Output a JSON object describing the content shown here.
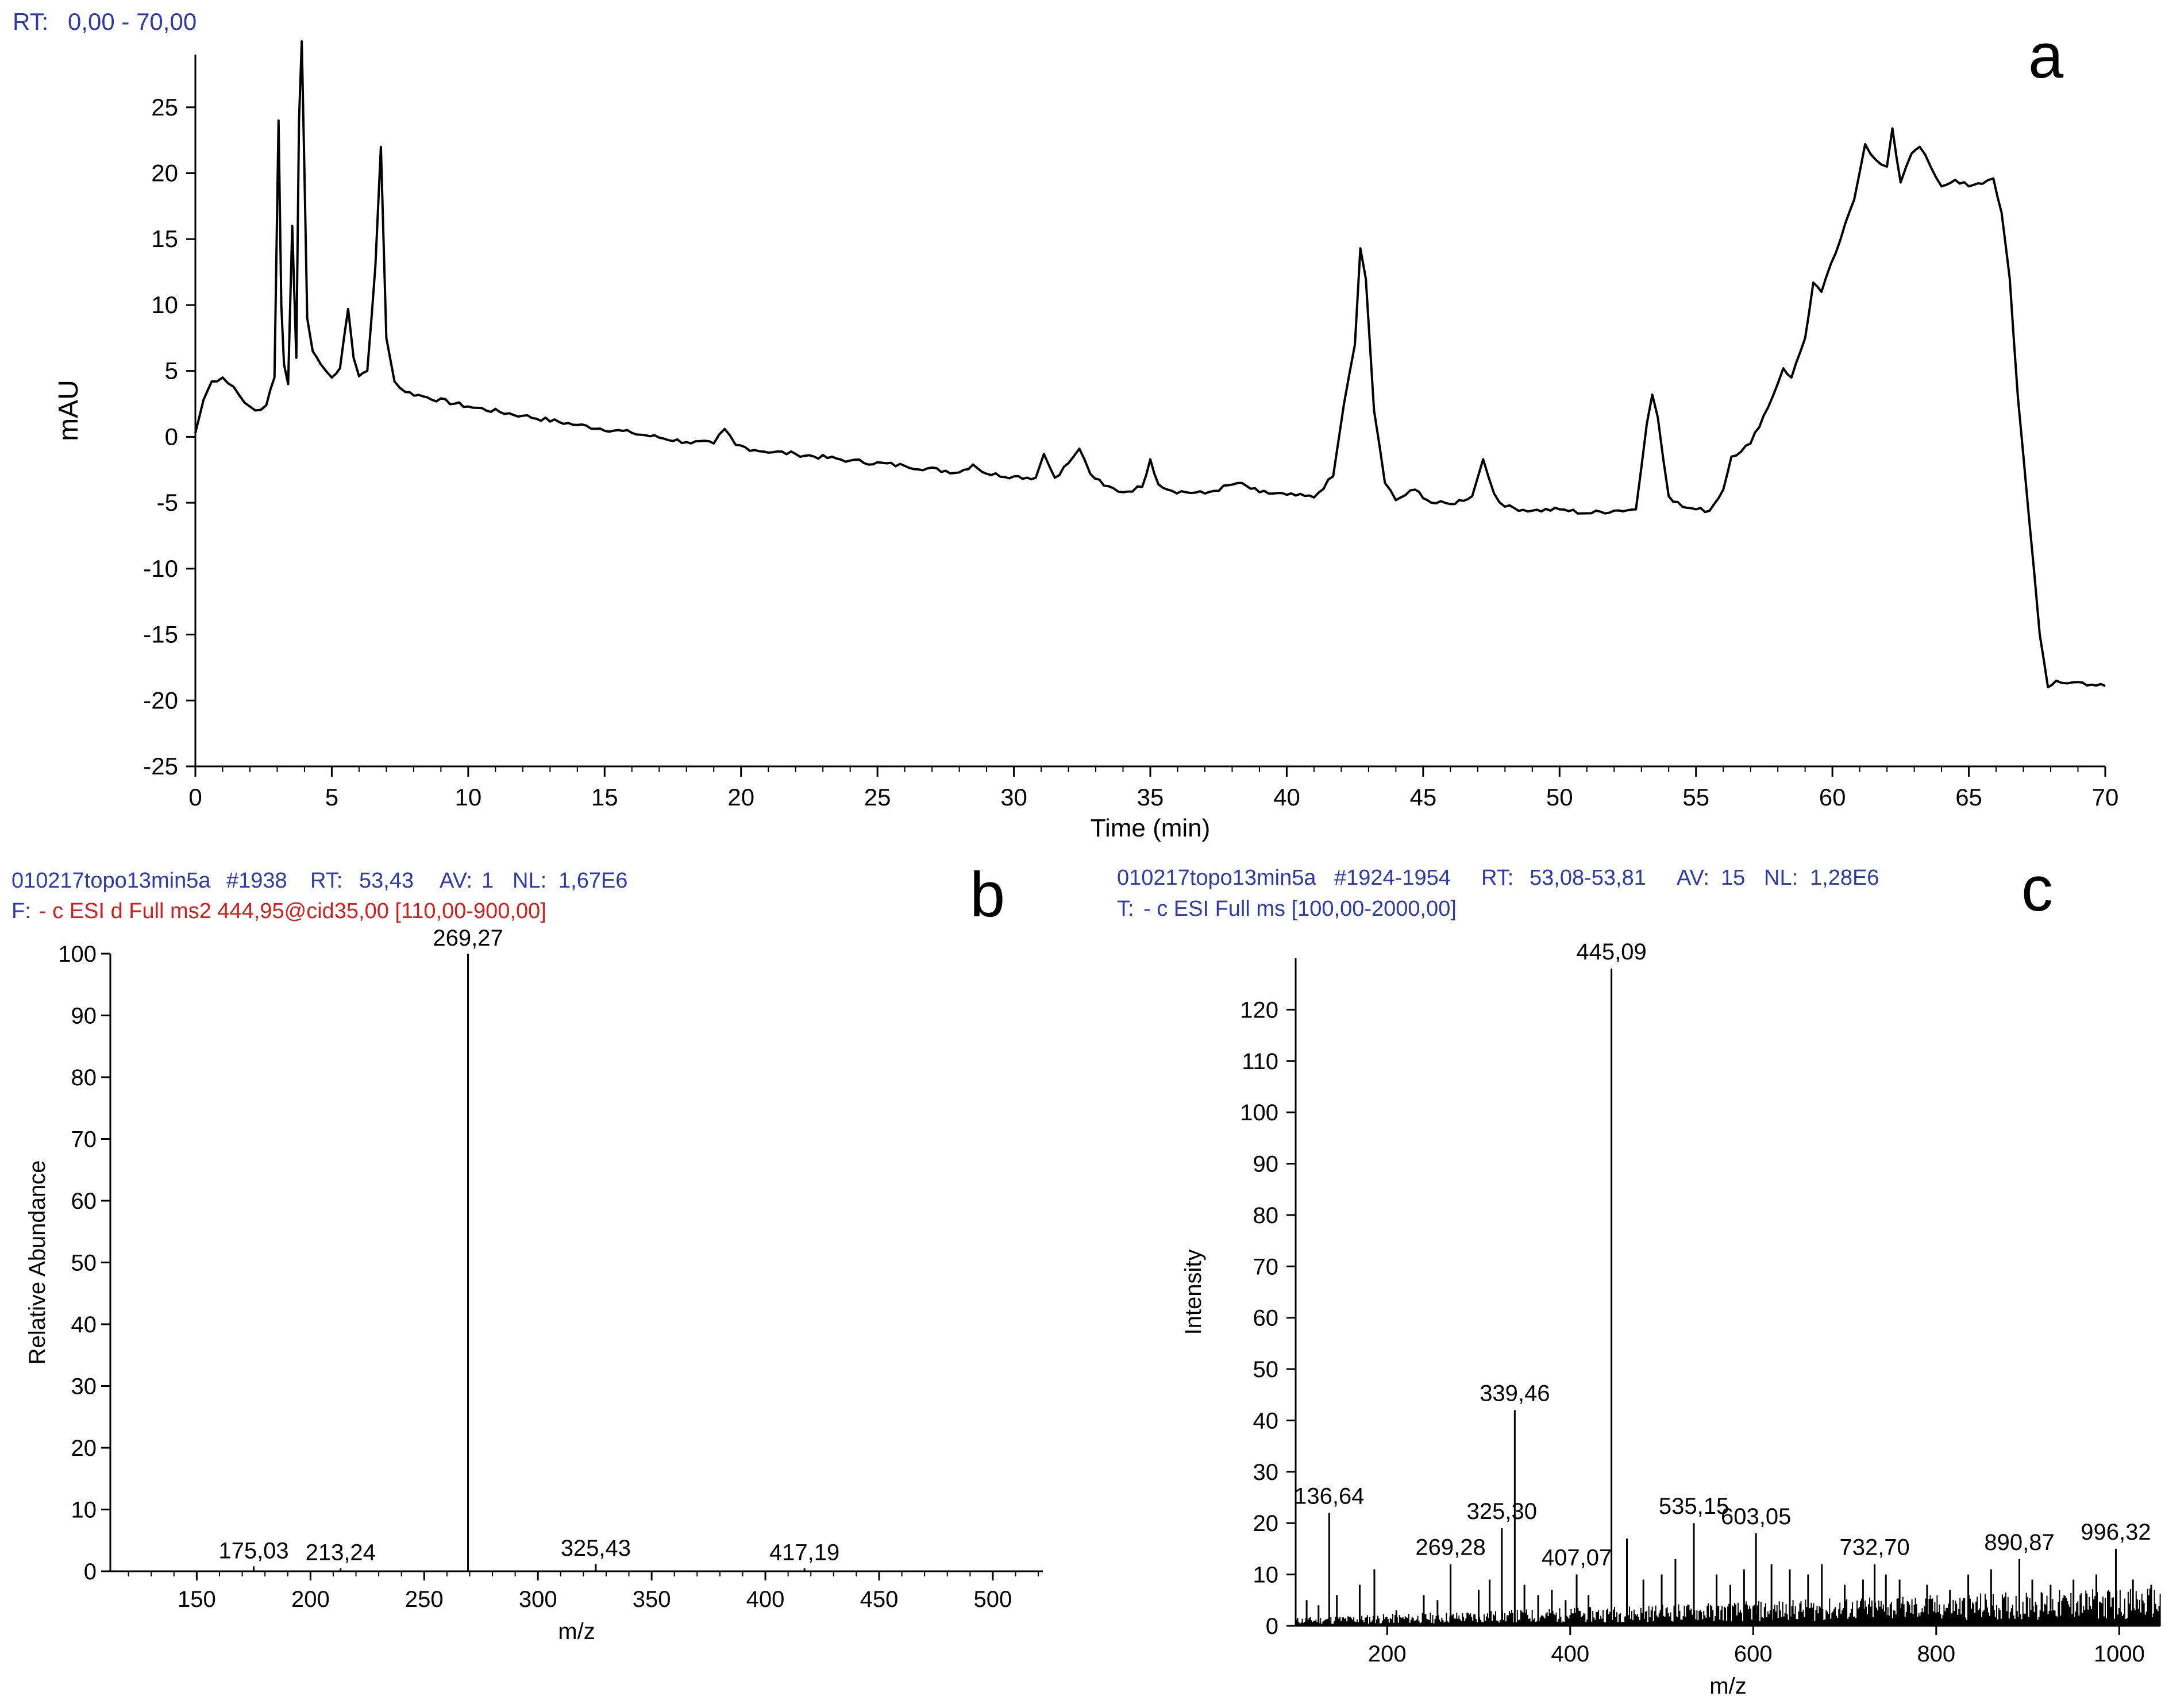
{
  "panel_a": {
    "rt_label": "RT:",
    "rt_value": "0,00 - 70,00",
    "letter": "a"
  },
  "panel_b": {
    "header1": {
      "file": "010217topo13min5a",
      "scan": "#1938",
      "rt_label": "RT:",
      "rt_value": "53,43",
      "av_label": "AV:",
      "av_value": "1",
      "nl_label": "NL:",
      "nl_value": "1,67E6"
    },
    "header2": {
      "filter_label": "F:",
      "filter_value": "- c ESI d Full ms2 444,95@cid35,00 [110,00-900,00]"
    },
    "letter": "b"
  },
  "panel_c": {
    "header1": {
      "file": "010217topo13min5a",
      "scan": "#1924-1954",
      "rt_label": "RT:",
      "rt_value": "53,08-53,81",
      "av_label": "AV:",
      "av_value": "15",
      "nl_label": "NL:",
      "nl_value": "1,28E6"
    },
    "header2": {
      "filter_label": "T:",
      "filter_value": "- c ESI Full ms [100,00-2000,00]"
    },
    "letter": "c"
  },
  "colors": {
    "header_blue": "#2e3aa8",
    "header_red": "#d42020",
    "trace": "#000000"
  },
  "chart_data": [
    {
      "id": "a",
      "type": "line",
      "xlabel": "Time (min)",
      "ylabel": "mAU",
      "xlim": [
        0,
        70
      ],
      "ylim": [
        -25,
        29
      ],
      "xticks": [
        0,
        5,
        10,
        15,
        20,
        25,
        30,
        35,
        40,
        45,
        50,
        55,
        60,
        65,
        70
      ],
      "yticks": [
        -25,
        -20,
        -15,
        -10,
        -5,
        0,
        5,
        10,
        15,
        20,
        25
      ],
      "series": [
        {
          "x": [
            0,
            0.3,
            0.6,
            1.0,
            1.4,
            1.8,
            2.2,
            2.6,
            2.9,
            3.05,
            3.15,
            3.25,
            3.4,
            3.55,
            3.7,
            3.8,
            3.9,
            4.0,
            4.1,
            4.3,
            4.6,
            5.0,
            5.3,
            5.6,
            5.8,
            6.0,
            6.3,
            6.6,
            6.8,
            7.0,
            7.3,
            7.7,
            8.5,
            10,
            12,
            14,
            16,
            18,
            19.0,
            19.4,
            19.8,
            20.5,
            22,
            24,
            26,
            28,
            28.5,
            29,
            30,
            30.8,
            31.1,
            31.5,
            32.0,
            32.4,
            32.8,
            33.3,
            34,
            34.7,
            35.0,
            35.3,
            35.8,
            37,
            38.2,
            39,
            40,
            41.0,
            41.7,
            42.1,
            42.5,
            42.7,
            42.9,
            43.2,
            43.6,
            44,
            44.7,
            45.3,
            46,
            46.8,
            47.2,
            47.6,
            48,
            49,
            50,
            51,
            52,
            52.8,
            53.2,
            53.4,
            53.6,
            54.0,
            54.5,
            55,
            55.5,
            56.0,
            56.3,
            57,
            57.8,
            58.2,
            58.5,
            59.0,
            59.3,
            59.6,
            60.3,
            60.8,
            61.2,
            61.6,
            62.0,
            62.2,
            62.5,
            62.9,
            63.2,
            63.6,
            64.0,
            64.5,
            65.0,
            65.5,
            65.9,
            66.2,
            66.5,
            66.8,
            67.2,
            67.6,
            67.9,
            68.2,
            68.6,
            69,
            69.5,
            70
          ],
          "y": [
            0.3,
            2.8,
            4.2,
            4.5,
            3.8,
            2.6,
            2.0,
            2.4,
            4.5,
            24,
            10,
            5.5,
            4,
            16,
            6,
            24,
            30,
            20,
            9,
            6.5,
            5.5,
            4.5,
            5.2,
            9.7,
            6.0,
            4.6,
            5.0,
            13,
            22,
            7.5,
            4.2,
            3.4,
            3.0,
            2.3,
            1.6,
            0.9,
            0.3,
            -0.4,
            -0.5,
            0.6,
            -0.6,
            -1.0,
            -1.3,
            -1.8,
            -2.2,
            -2.7,
            -2.1,
            -2.8,
            -3.0,
            -3.1,
            -1.3,
            -3.1,
            -2.0,
            -0.9,
            -2.8,
            -3.7,
            -4.2,
            -3.8,
            -1.7,
            -3.6,
            -4.1,
            -4.3,
            -3.5,
            -4.2,
            -4.4,
            -4.6,
            -3.0,
            2.5,
            7,
            14.3,
            12,
            2,
            -3.5,
            -4.8,
            -4.0,
            -5.0,
            -5.1,
            -4.5,
            -1.7,
            -4.3,
            -5.3,
            -5.6,
            -5.5,
            -5.8,
            -5.6,
            -5.5,
            1.0,
            3.2,
            1.5,
            -4.5,
            -5.3,
            -5.5,
            -5.6,
            -4.0,
            -1.5,
            -0.5,
            3.0,
            5.2,
            4.5,
            7.5,
            11.7,
            11.0,
            15.0,
            18.0,
            22.2,
            21.0,
            20.5,
            23.4,
            19.3,
            21.5,
            22.0,
            20.5,
            19.0,
            19.5,
            19.0,
            19.2,
            19.6,
            17.0,
            12.0,
            3.0,
            -6.0,
            -15.0,
            -19.0,
            -18.5,
            -18.7,
            -18.6,
            -18.8,
            -18.9
          ]
        }
      ]
    },
    {
      "id": "b",
      "type": "bar",
      "xlabel": "m/z",
      "ylabel": "Relative Abundance",
      "xlim": [
        112,
        522
      ],
      "ylim": [
        0,
        100
      ],
      "xticks": [
        150,
        200,
        250,
        300,
        350,
        400,
        450,
        500
      ],
      "yticks": [
        0,
        10,
        20,
        30,
        40,
        50,
        60,
        70,
        80,
        90,
        100
      ],
      "peaks": [
        {
          "mz": 175.03,
          "value": 0.8,
          "label": "175,03"
        },
        {
          "mz": 213.24,
          "value": 0.5,
          "label": "213,24"
        },
        {
          "mz": 269.27,
          "value": 100,
          "label": "269,27"
        },
        {
          "mz": 325.43,
          "value": 1.2,
          "label": "325,43"
        },
        {
          "mz": 417.19,
          "value": 0.5,
          "label": "417,19"
        }
      ]
    },
    {
      "id": "c",
      "type": "bar",
      "xlabel": "m/z",
      "ylabel": "Intensity",
      "xlim": [
        100,
        1045
      ],
      "ylim": [
        0,
        130
      ],
      "xticks": [
        200,
        400,
        600,
        800,
        1000
      ],
      "yticks": [
        0,
        10,
        20,
        30,
        40,
        50,
        60,
        70,
        80,
        90,
        100,
        110,
        120
      ],
      "peaks": [
        {
          "mz": 136.64,
          "value": 22,
          "label": "136,64"
        },
        {
          "mz": 269.28,
          "value": 12,
          "label": "269,28"
        },
        {
          "mz": 325.3,
          "value": 19,
          "label": "325,30"
        },
        {
          "mz": 339.46,
          "value": 42,
          "label": "339,46"
        },
        {
          "mz": 407.07,
          "value": 10,
          "label": "407,07"
        },
        {
          "mz": 445.09,
          "value": 128,
          "label": "445,09"
        },
        {
          "mz": 535.15,
          "value": 20,
          "label": "535,15"
        },
        {
          "mz": 603.05,
          "value": 18,
          "label": "603,05"
        },
        {
          "mz": 732.7,
          "value": 12,
          "label": "732,70"
        },
        {
          "mz": 890.87,
          "value": 13,
          "label": "890,87"
        },
        {
          "mz": 996.32,
          "value": 15,
          "label": "996,32"
        }
      ],
      "minor_peaks": [
        {
          "mz": 112,
          "value": 5
        },
        {
          "mz": 125,
          "value": 4
        },
        {
          "mz": 145,
          "value": 6
        },
        {
          "mz": 170,
          "value": 8
        },
        {
          "mz": 186,
          "value": 11
        },
        {
          "mz": 210,
          "value": 3
        },
        {
          "mz": 240,
          "value": 6
        },
        {
          "mz": 255,
          "value": 5
        },
        {
          "mz": 300,
          "value": 7
        },
        {
          "mz": 312,
          "value": 9
        },
        {
          "mz": 350,
          "value": 8
        },
        {
          "mz": 365,
          "value": 6
        },
        {
          "mz": 380,
          "value": 7
        },
        {
          "mz": 395,
          "value": 5
        },
        {
          "mz": 420,
          "value": 6
        },
        {
          "mz": 462,
          "value": 17
        },
        {
          "mz": 480,
          "value": 9
        },
        {
          "mz": 500,
          "value": 10
        },
        {
          "mz": 515,
          "value": 13
        },
        {
          "mz": 560,
          "value": 10
        },
        {
          "mz": 575,
          "value": 8
        },
        {
          "mz": 590,
          "value": 11
        },
        {
          "mz": 620,
          "value": 12
        },
        {
          "mz": 640,
          "value": 11
        },
        {
          "mz": 660,
          "value": 10
        },
        {
          "mz": 675,
          "value": 12
        },
        {
          "mz": 700,
          "value": 8
        },
        {
          "mz": 720,
          "value": 9
        },
        {
          "mz": 745,
          "value": 10
        },
        {
          "mz": 760,
          "value": 9
        },
        {
          "mz": 790,
          "value": 8
        },
        {
          "mz": 815,
          "value": 7
        },
        {
          "mz": 835,
          "value": 10
        },
        {
          "mz": 860,
          "value": 11
        },
        {
          "mz": 905,
          "value": 9
        },
        {
          "mz": 925,
          "value": 8
        },
        {
          "mz": 950,
          "value": 9
        },
        {
          "mz": 975,
          "value": 10
        },
        {
          "mz": 1015,
          "value": 9
        },
        {
          "mz": 1035,
          "value": 8
        }
      ]
    }
  ]
}
